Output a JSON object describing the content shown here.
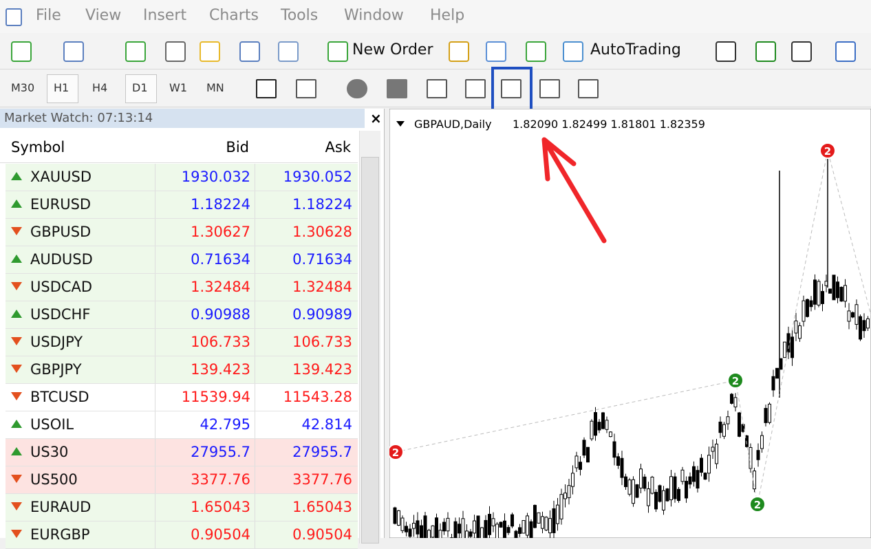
{
  "menu": [
    "File",
    "View",
    "Insert",
    "Charts",
    "Tools",
    "Window",
    "Help"
  ],
  "toolbar": {
    "new_order": "New Order",
    "auto_trading": "AutoTrading"
  },
  "timeframes": [
    "M30",
    "H1",
    "H4",
    "D1",
    "W1",
    "MN"
  ],
  "market_watch": {
    "title": "Market Watch: 07:13:14",
    "close": "×",
    "columns": [
      "Symbol",
      "Bid",
      "Ask"
    ],
    "rows": [
      {
        "symbol": "XAUUSD",
        "bid": "1930.032",
        "ask": "1930.052",
        "trend": "up",
        "background": "#eef9ea"
      },
      {
        "symbol": "EURUSD",
        "bid": "1.18224",
        "ask": "1.18224",
        "trend": "up",
        "background": "#eef9ea"
      },
      {
        "symbol": "GBPUSD",
        "bid": "1.30627",
        "ask": "1.30628",
        "trend": "down",
        "background": "#eef9ea"
      },
      {
        "symbol": "AUDUSD",
        "bid": "0.71634",
        "ask": "0.71634",
        "trend": "up",
        "background": "#eef9ea"
      },
      {
        "symbol": "USDCAD",
        "bid": "1.32484",
        "ask": "1.32484",
        "trend": "down",
        "background": "#eef9ea"
      },
      {
        "symbol": "USDCHF",
        "bid": "0.90988",
        "ask": "0.90989",
        "trend": "up",
        "background": "#eef9ea"
      },
      {
        "symbol": "USDJPY",
        "bid": "106.733",
        "ask": "106.733",
        "trend": "down",
        "background": "#eef9ea"
      },
      {
        "symbol": "GBPJPY",
        "bid": "139.423",
        "ask": "139.423",
        "trend": "down",
        "background": "#eef9ea"
      },
      {
        "symbol": "BTCUSD",
        "bid": "11539.94",
        "ask": "11543.28",
        "trend": "down",
        "background": "#ffffff"
      },
      {
        "symbol": "USOIL",
        "bid": "42.795",
        "ask": "42.814",
        "trend": "up",
        "background": "#ffffff"
      },
      {
        "symbol": "US30",
        "bid": "27955.7",
        "ask": "27955.7",
        "trend": "up",
        "background": "#fde3e1"
      },
      {
        "symbol": "US500",
        "bid": "3377.76",
        "ask": "3377.76",
        "trend": "down",
        "background": "#fde3e1"
      },
      {
        "symbol": "EURAUD",
        "bid": "1.65043",
        "ask": "1.65043",
        "trend": "down",
        "background": "#eef9ea"
      },
      {
        "symbol": "EURGBP",
        "bid": "0.90504",
        "ask": "0.90504",
        "trend": "down",
        "background": "#eef9ea"
      }
    ]
  },
  "chart": {
    "symbol": "GBPAUD,Daily",
    "quotes": "1.82090 1.82499 1.81801 1.82359",
    "markers": [
      {
        "label": "2",
        "color": "#e41b1b"
      },
      {
        "label": "2",
        "color": "#1e8a1e"
      },
      {
        "label": "2",
        "color": "#1e8a1e"
      },
      {
        "label": "2",
        "color": "#e41b1b"
      }
    ]
  }
}
